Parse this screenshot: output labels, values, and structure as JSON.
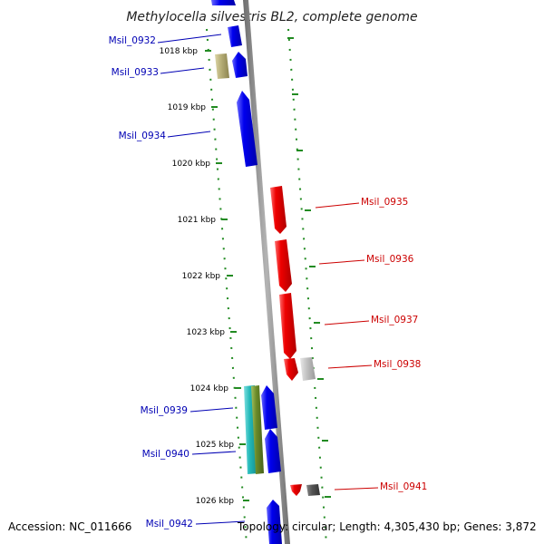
{
  "title": "Methylocella silvestris BL2, complete genome",
  "ticks": [
    "1018 kbp",
    "1019 kbp",
    "1020 kbp",
    "1021 kbp",
    "1022 kbp",
    "1023 kbp",
    "1024 kbp",
    "1025 kbp",
    "1026 kbp"
  ],
  "left_genes": [
    "Msil_0932",
    "Msil_0933",
    "Msil_0934",
    "Msil_0939",
    "Msil_0940",
    "Msil_0942"
  ],
  "right_genes": [
    "Msil_0935",
    "Msil_0936",
    "Msil_0937",
    "Msil_0938",
    "Msil_0941"
  ],
  "colors": {
    "left_label": "#0000b4",
    "right_label": "#cc0000",
    "tick": "#228b22",
    "backbone": "#8c8c8c",
    "gene_blue": "#0000ee",
    "gene_red": "#ee0000",
    "gene_tan": "#b8b078",
    "gene_gray": "#bbbbbb",
    "gene_darkgray": "#555555",
    "gene_cyan": "#22b8b8",
    "gene_olive": "#6a8c2a"
  },
  "footer": {
    "accession": "Accession: NC_011666",
    "topology": "Topology: circular; Length: 4,305,430 bp; Genes: 3,872"
  }
}
